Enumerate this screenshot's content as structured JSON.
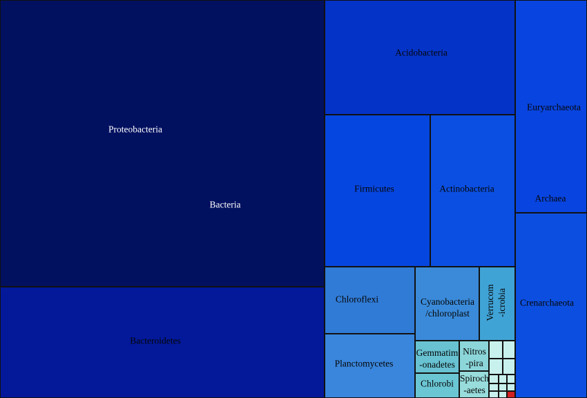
{
  "chart_data": {
    "type": "treemap",
    "colors": {
      "darkest": "#021060",
      "dark": "#03199a",
      "mid_dark": "#0433c8",
      "mid": "#0544e0",
      "mid_light": "#0c50e8",
      "light": "#2f7cd8",
      "lighter": "#3a8ddf",
      "pale": "#6cc8d6",
      "paler": "#9adfe0",
      "palest": "#c8f0ec",
      "accent_red": "#d02020"
    },
    "groups": [
      {
        "name": "Bacteria",
        "nodes": [
          {
            "key": "proteobacteria",
            "label": "Proteobacteria",
            "color": "#021060",
            "text_color": "#ffffff"
          },
          {
            "key": "bacteroidetes",
            "label": "Bacteroidetes",
            "color": "#03199a",
            "text_color": "#050505"
          },
          {
            "key": "acidobacteria",
            "label": "Acidobacteria",
            "color": "#0433c8",
            "text_color": "#050505"
          },
          {
            "key": "firmicutes",
            "label": "Firmicutes",
            "color": "#0646e0",
            "text_color": "#050505"
          },
          {
            "key": "actinobacteria",
            "label": "Actinobacteria",
            "color": "#0b4fe2",
            "text_color": "#050505"
          },
          {
            "key": "chloroflexi",
            "label": "Chloroflexi",
            "color": "#307bd6",
            "text_color": "#050505"
          },
          {
            "key": "cyanobacteria",
            "label": "Cyanobacteria\n/chloroplast",
            "color": "#3a8ad9",
            "text_color": "#050505"
          },
          {
            "key": "verrucomicrobia",
            "label": "Verrucom\n-icrobia",
            "color": "#40a3d6",
            "text_color": "#050505",
            "rotated": true
          },
          {
            "key": "planctomycetes",
            "label": "Planctomycetes",
            "color": "#3a86dc",
            "text_color": "#050505"
          },
          {
            "key": "gemmatimonadetes",
            "label": "Gemmatim\n-onadetes",
            "color": "#68c2d2",
            "text_color": "#050505"
          },
          {
            "key": "nitrospira",
            "label": "Nitros\n-pira",
            "color": "#8cd6da",
            "text_color": "#050505"
          },
          {
            "key": "chlorobi",
            "label": "Chlorobi",
            "color": "#6bc6d4",
            "text_color": "#050505"
          },
          {
            "key": "spirochaetes",
            "label": "Spiroch\n-aetes",
            "color": "#98dcdc",
            "text_color": "#050505"
          },
          {
            "key": "other1",
            "label": "",
            "color": "#c8f0ec"
          },
          {
            "key": "other2",
            "label": "",
            "color": "#c8f0ec"
          },
          {
            "key": "other3",
            "label": "",
            "color": "#c8f0ec"
          },
          {
            "key": "other4",
            "label": "",
            "color": "#c8f0ec"
          },
          {
            "key": "other5",
            "label": "",
            "color": "#c8f0ec"
          },
          {
            "key": "other6",
            "label": "",
            "color": "#c8f0ec"
          },
          {
            "key": "other7",
            "label": "",
            "color": "#c8f0ec"
          },
          {
            "key": "other8",
            "label": "",
            "color": "#c8f0ec"
          },
          {
            "key": "other9",
            "label": "",
            "color": "#c8f0ec"
          },
          {
            "key": "other10",
            "label": "",
            "color": "#c8f0ec"
          },
          {
            "key": "other11",
            "label": "",
            "color": "#c8f0ec"
          },
          {
            "key": "other12",
            "label": "",
            "color": "#c8f0ec"
          },
          {
            "key": "other13",
            "label": "",
            "color": "#d02020"
          }
        ]
      },
      {
        "name": "Archaea",
        "nodes": [
          {
            "key": "euryarchaeota",
            "label": "Euryarchaeota",
            "color": "#0844e0",
            "text_color": "#050505"
          },
          {
            "key": "crenarchaeota",
            "label": "Crenarchaeota",
            "color": "#0c4fe0",
            "text_color": "#050505"
          }
        ]
      }
    ]
  }
}
